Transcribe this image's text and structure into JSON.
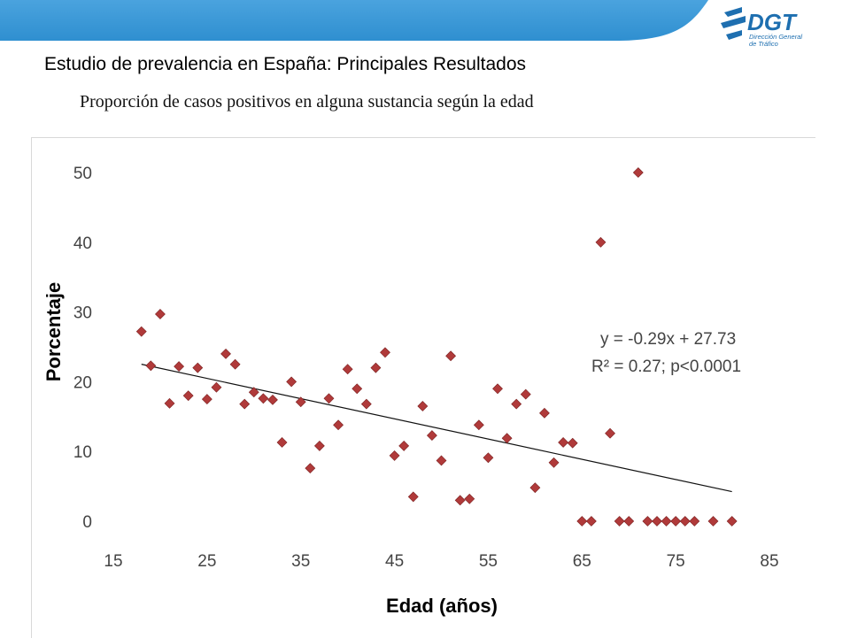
{
  "header": {
    "logo_text": "DGT",
    "logo_subtext": [
      "Dirección General",
      "de Tráfico"
    ],
    "band_color": "#2f8fd0",
    "logo_color": "#1e6fb0"
  },
  "slide_title": "Estudio de prevalencia en España: Principales Resultados",
  "subtitle": "Proporción de casos positivos en alguna sustancia según la edad",
  "chart_data": {
    "type": "scatter",
    "title": "",
    "xlabel": "Edad (años)",
    "ylabel": "Porcentaje",
    "xlim": [
      15,
      85
    ],
    "ylim": [
      0,
      50
    ],
    "xticks": [
      15,
      25,
      35,
      45,
      55,
      65,
      75,
      85
    ],
    "yticks": [
      0,
      10,
      20,
      30,
      40,
      50
    ],
    "grid": false,
    "marker": "diamond",
    "marker_color": "#b03a3a",
    "trendline": {
      "slope": -0.29,
      "intercept": 27.73,
      "x_range": [
        18,
        81
      ]
    },
    "annotation": [
      "y = -0.29x + 27.73",
      "R² = 0.27; p<0.0001"
    ],
    "points": [
      [
        18,
        27.2
      ],
      [
        19,
        22.3
      ],
      [
        20,
        29.7
      ],
      [
        21,
        16.9
      ],
      [
        22,
        22.2
      ],
      [
        23,
        18.0
      ],
      [
        24,
        22.0
      ],
      [
        25,
        17.5
      ],
      [
        26,
        19.2
      ],
      [
        27,
        24.0
      ],
      [
        28,
        22.5
      ],
      [
        29,
        16.8
      ],
      [
        30,
        18.5
      ],
      [
        31,
        17.6
      ],
      [
        32,
        17.4
      ],
      [
        33,
        11.3
      ],
      [
        34,
        20.0
      ],
      [
        35,
        17.1
      ],
      [
        36,
        7.6
      ],
      [
        37,
        10.8
      ],
      [
        38,
        17.6
      ],
      [
        39,
        13.8
      ],
      [
        40,
        21.8
      ],
      [
        41,
        19.0
      ],
      [
        42,
        16.8
      ],
      [
        43,
        22.0
      ],
      [
        44,
        24.2
      ],
      [
        45,
        9.4
      ],
      [
        46,
        10.8
      ],
      [
        47,
        3.5
      ],
      [
        48,
        16.5
      ],
      [
        49,
        12.3
      ],
      [
        50,
        8.7
      ],
      [
        51,
        23.7
      ],
      [
        52,
        3.0
      ],
      [
        53,
        3.2
      ],
      [
        54,
        13.8
      ],
      [
        55,
        9.1
      ],
      [
        56,
        19.0
      ],
      [
        57,
        11.9
      ],
      [
        58,
        16.8
      ],
      [
        59,
        18.2
      ],
      [
        60,
        4.8
      ],
      [
        61,
        15.5
      ],
      [
        62,
        8.4
      ],
      [
        63,
        11.3
      ],
      [
        64,
        11.2
      ],
      [
        65,
        0
      ],
      [
        66,
        0
      ],
      [
        67,
        40.0
      ],
      [
        68,
        12.6
      ],
      [
        69,
        0
      ],
      [
        70,
        0
      ],
      [
        71,
        50.0
      ],
      [
        72,
        0
      ],
      [
        73,
        0
      ],
      [
        74,
        0
      ],
      [
        75,
        0
      ],
      [
        76,
        0
      ],
      [
        77,
        0
      ],
      [
        79,
        0
      ],
      [
        81,
        0
      ]
    ]
  }
}
